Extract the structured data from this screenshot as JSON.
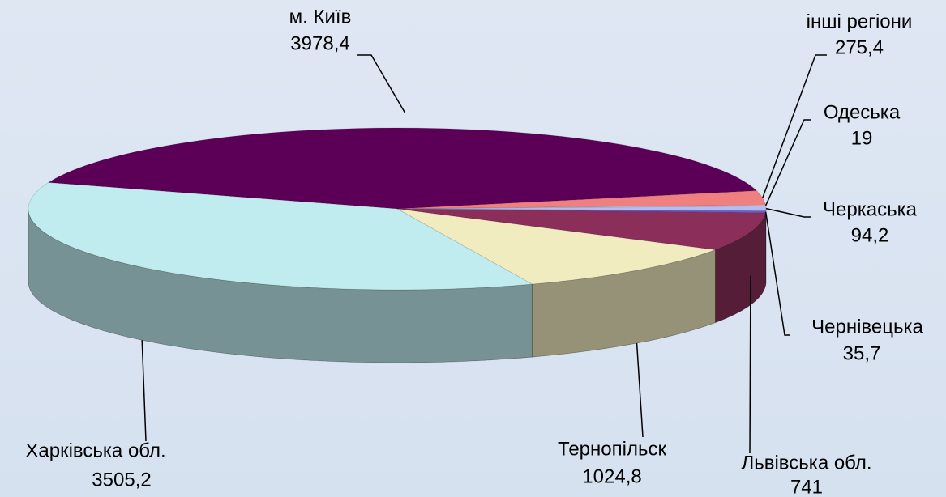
{
  "chart_data": {
    "type": "pie3d",
    "categories": [
      "м. Київ",
      "інші регіони",
      "Одеська",
      "Черкаська",
      "Чернівецька",
      "Львівська обл.",
      "Тернопільск",
      "Харківська обл."
    ],
    "values": [
      3978.4,
      275.4,
      19,
      94.2,
      35.7,
      741,
      1024.8,
      3505.2
    ],
    "value_labels": [
      "3978,4",
      "275,4",
      "19",
      "94,2",
      "35,7",
      "741",
      "1024,8",
      "3505,2"
    ],
    "colors": [
      "#5c0057",
      "#f08080",
      "#ece4f4",
      "#b4bcf2",
      "#6a5acd",
      "#8b2e5a",
      "#f0ecc0",
      "#c0ecef"
    ]
  }
}
